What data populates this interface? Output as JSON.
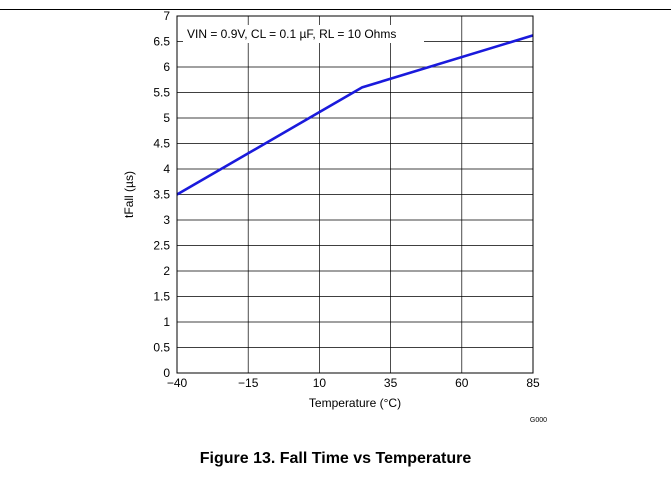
{
  "caption": "Figure 13. Fall Time vs Temperature",
  "chart_data": {
    "type": "line",
    "title": "",
    "xlabel": "Temperature (°C)",
    "ylabel": "tFall (µs)",
    "xlim": [
      -40,
      85
    ],
    "ylim": [
      0,
      7
    ],
    "xticks": [
      -40,
      -15,
      10,
      35,
      60,
      85
    ],
    "xtick_labels": [
      "−40",
      "−15",
      "10",
      "35",
      "60",
      "85"
    ],
    "yticks": [
      0,
      0.5,
      1,
      1.5,
      2,
      2.5,
      3,
      3.5,
      4,
      4.5,
      5,
      5.5,
      6,
      6.5,
      7
    ],
    "ytick_labels": [
      "0",
      "0.5",
      "1",
      "1.5",
      "2",
      "2.5",
      "3",
      "3.5",
      "4",
      "4.5",
      "5",
      "5.5",
      "6",
      "6.5",
      "7"
    ],
    "grid": true,
    "annotation": "VIN = 0.9V, CL = 0.1 µF, RL = 10 Ohms",
    "graph_id": "G000",
    "series": [
      {
        "color": "#1a1adc",
        "x": [
          -40,
          25,
          85
        ],
        "y": [
          3.5,
          5.6,
          6.62
        ]
      }
    ]
  }
}
